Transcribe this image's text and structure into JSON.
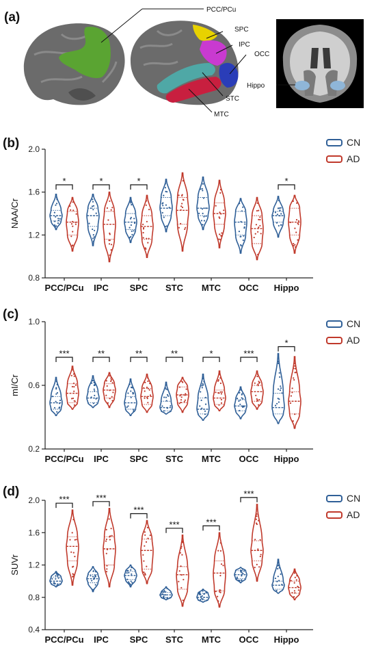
{
  "panel_a": {
    "letter": "(a)",
    "region_labels": [
      "PCC/PCu",
      "SPC",
      "IPC",
      "OCC",
      "Hippo",
      "STC",
      "MTC"
    ]
  },
  "colors": {
    "cn": "#2f5f97",
    "ad": "#c0392b",
    "pcc_region": "#5aa432",
    "spc_region": "#e8d200",
    "ipc_region": "#c93ad0",
    "occ_region": "#2a3db8",
    "stc_region": "#4fa8a6",
    "mtc_region": "#c81f3f",
    "hippo_region": "#8fb6d8"
  },
  "chart_data": [
    {
      "type": "violin",
      "panel": "(b)",
      "ylabel": "NAA/Cr",
      "ylim": [
        0.8,
        2.0
      ],
      "yticks": [
        "0.8",
        "1.2",
        "1.6",
        "2.0"
      ],
      "categories": [
        "PCC/PCu",
        "IPC",
        "SPC",
        "STC",
        "MTC",
        "OCC",
        "Hippo"
      ],
      "significance": [
        "*",
        "*",
        "*",
        "",
        "",
        "",
        "*"
      ],
      "legend": [
        "CN",
        "AD"
      ],
      "series": [
        {
          "name": "CN",
          "min": [
            1.25,
            1.1,
            1.13,
            1.23,
            1.25,
            1.03,
            1.18
          ],
          "q1": [
            1.33,
            1.28,
            1.25,
            1.38,
            1.38,
            1.2,
            1.32
          ],
          "median": [
            1.38,
            1.38,
            1.32,
            1.45,
            1.45,
            1.32,
            1.38
          ],
          "q3": [
            1.43,
            1.45,
            1.4,
            1.55,
            1.55,
            1.42,
            1.42
          ],
          "max": [
            1.58,
            1.58,
            1.55,
            1.72,
            1.74,
            1.54,
            1.56
          ]
        },
        {
          "name": "AD",
          "min": [
            1.05,
            0.95,
            0.99,
            1.05,
            1.08,
            0.97,
            1.03
          ],
          "q1": [
            1.2,
            1.16,
            1.16,
            1.3,
            1.3,
            1.12,
            1.2
          ],
          "median": [
            1.32,
            1.3,
            1.28,
            1.43,
            1.4,
            1.26,
            1.32
          ],
          "q3": [
            1.42,
            1.42,
            1.38,
            1.55,
            1.5,
            1.38,
            1.45
          ],
          "max": [
            1.55,
            1.6,
            1.57,
            1.78,
            1.71,
            1.55,
            1.57
          ]
        }
      ]
    },
    {
      "type": "violin",
      "panel": "(c)",
      "ylabel": "mI/Cr",
      "ylim": [
        0.2,
        1.0
      ],
      "yticks": [
        "0.2",
        "0.6",
        "1.0"
      ],
      "categories": [
        "PCC/PCu",
        "IPC",
        "SPC",
        "STC",
        "MTC",
        "OCC",
        "Hippo"
      ],
      "significance": [
        "***",
        "**",
        "**",
        "**",
        "*",
        "***",
        "*"
      ],
      "legend": [
        "CN",
        "AD"
      ],
      "series": [
        {
          "name": "CN",
          "min": [
            0.41,
            0.46,
            0.41,
            0.42,
            0.38,
            0.39,
            0.36
          ],
          "q1": [
            0.45,
            0.49,
            0.45,
            0.44,
            0.42,
            0.44,
            0.42
          ],
          "median": [
            0.49,
            0.52,
            0.49,
            0.46,
            0.45,
            0.47,
            0.46
          ],
          "q3": [
            0.53,
            0.56,
            0.53,
            0.5,
            0.52,
            0.51,
            0.55
          ],
          "max": [
            0.65,
            0.66,
            0.64,
            0.62,
            0.67,
            0.59,
            0.8
          ]
        },
        {
          "name": "AD",
          "min": [
            0.45,
            0.46,
            0.43,
            0.43,
            0.44,
            0.45,
            0.33
          ],
          "q1": [
            0.49,
            0.52,
            0.48,
            0.49,
            0.48,
            0.5,
            0.42
          ],
          "median": [
            0.55,
            0.57,
            0.53,
            0.54,
            0.52,
            0.56,
            0.5
          ],
          "q3": [
            0.61,
            0.61,
            0.58,
            0.59,
            0.57,
            0.6,
            0.56
          ],
          "max": [
            0.72,
            0.68,
            0.67,
            0.65,
            0.69,
            0.69,
            0.78
          ]
        }
      ]
    },
    {
      "type": "violin",
      "panel": "(d)",
      "ylabel": "SUVr",
      "ylim": [
        0.4,
        2.0
      ],
      "yticks": [
        "0.4",
        "0.8",
        "1.2",
        "1.6",
        "2.0"
      ],
      "categories": [
        "PCC/PCu",
        "IPC",
        "SPC",
        "STC",
        "MTC",
        "OCC",
        "Hippo"
      ],
      "significance": [
        "***",
        "***",
        "***",
        "***",
        "***",
        "***",
        ""
      ],
      "legend": [
        "CN",
        "AD"
      ],
      "series": [
        {
          "name": "CN",
          "min": [
            0.93,
            0.87,
            0.93,
            0.77,
            0.74,
            0.98,
            0.85
          ],
          "q1": [
            0.97,
            0.98,
            1.02,
            0.8,
            0.77,
            1.03,
            0.9
          ],
          "median": [
            1.0,
            1.03,
            1.07,
            0.83,
            0.8,
            1.08,
            0.95
          ],
          "q3": [
            1.05,
            1.08,
            1.12,
            0.86,
            0.85,
            1.13,
            1.0
          ],
          "max": [
            1.12,
            1.18,
            1.2,
            0.93,
            0.9,
            1.17,
            1.27
          ]
        },
        {
          "name": "AD",
          "min": [
            0.95,
            0.93,
            0.97,
            0.69,
            0.68,
            1.0,
            0.77
          ],
          "q1": [
            1.25,
            1.2,
            1.15,
            0.9,
            0.88,
            1.25,
            0.85
          ],
          "median": [
            1.43,
            1.4,
            1.38,
            1.08,
            1.1,
            1.38,
            0.92
          ],
          "q3": [
            1.55,
            1.55,
            1.52,
            1.18,
            1.25,
            1.5,
            1.0
          ],
          "max": [
            1.88,
            1.9,
            1.75,
            1.57,
            1.6,
            1.95,
            1.15
          ]
        }
      ]
    }
  ]
}
